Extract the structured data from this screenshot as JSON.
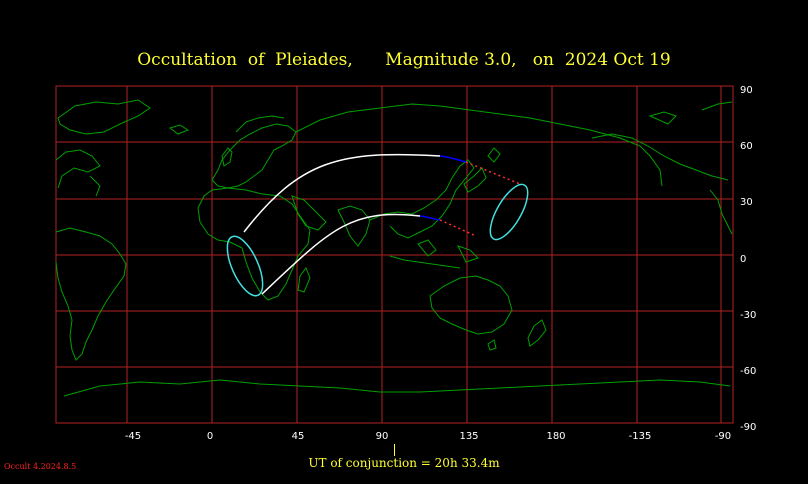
{
  "title": {
    "text": "Occultation  of  Pleiades,      Magnitude 3.0,   on  2024 Oct 19"
  },
  "conjunction": {
    "text": "UT of conjunction = 20h 33.4m"
  },
  "version": "Occult 4.2024.8.5",
  "axes": {
    "longitude_labels": [
      "-45",
      "0",
      "45",
      "90",
      "135",
      "180",
      "-135",
      "-90"
    ],
    "latitude_labels": [
      "90",
      "60",
      "30",
      "0",
      "-30",
      "-60",
      "-90"
    ]
  },
  "colors": {
    "background": "#000000",
    "grid": "#b22222",
    "coastline": "#00a000",
    "path": "#ffffff",
    "path_daylight": "#0000ff",
    "path_below_horizon": "#ff3030",
    "limit_ellipse": "#40e0e0",
    "title": "#ffff33"
  }
}
